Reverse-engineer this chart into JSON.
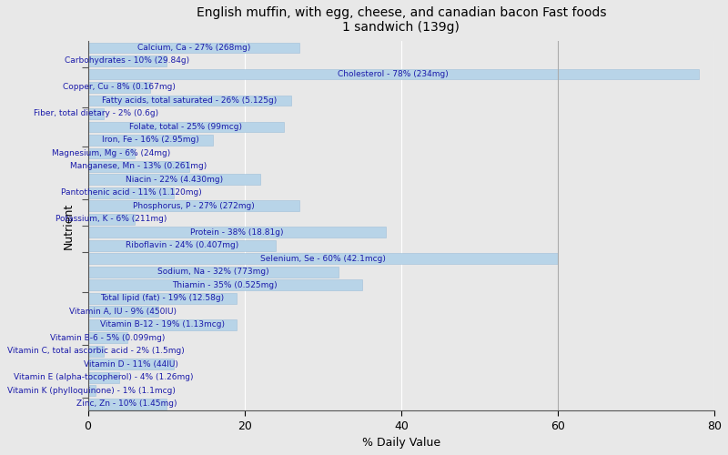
{
  "title": "English muffin, with egg, cheese, and canadian bacon Fast foods\n1 sandwich (139g)",
  "xlabel": "% Daily Value",
  "ylabel": "Nutrient",
  "xlim": [
    0,
    80
  ],
  "background_color": "#e8e8e8",
  "plot_bg_color": "#e8e8e8",
  "bar_color": "#b8d4e8",
  "bar_edge_color": "#a0c0d8",
  "label_color": "#1a1aaa",
  "nutrients": [
    {
      "label": "Calcium, Ca - 27% (268mg)",
      "value": 27
    },
    {
      "label": "Carbohydrates - 10% (29.84g)",
      "value": 10
    },
    {
      "label": "Cholesterol - 78% (234mg)",
      "value": 78
    },
    {
      "label": "Copper, Cu - 8% (0.167mg)",
      "value": 8
    },
    {
      "label": "Fatty acids, total saturated - 26% (5.125g)",
      "value": 26
    },
    {
      "label": "Fiber, total dietary - 2% (0.6g)",
      "value": 2
    },
    {
      "label": "Folate, total - 25% (99mcg)",
      "value": 25
    },
    {
      "label": "Iron, Fe - 16% (2.95mg)",
      "value": 16
    },
    {
      "label": "Magnesium, Mg - 6% (24mg)",
      "value": 6
    },
    {
      "label": "Manganese, Mn - 13% (0.261mg)",
      "value": 13
    },
    {
      "label": "Niacin - 22% (4.430mg)",
      "value": 22
    },
    {
      "label": "Pantothenic acid - 11% (1.120mg)",
      "value": 11
    },
    {
      "label": "Phosphorus, P - 27% (272mg)",
      "value": 27
    },
    {
      "label": "Potassium, K - 6% (211mg)",
      "value": 6
    },
    {
      "label": "Protein - 38% (18.81g)",
      "value": 38
    },
    {
      "label": "Riboflavin - 24% (0.407mg)",
      "value": 24
    },
    {
      "label": "Selenium, Se - 60% (42.1mcg)",
      "value": 60
    },
    {
      "label": "Sodium, Na - 32% (773mg)",
      "value": 32
    },
    {
      "label": "Thiamin - 35% (0.525mg)",
      "value": 35
    },
    {
      "label": "Total lipid (fat) - 19% (12.58g)",
      "value": 19
    },
    {
      "label": "Vitamin A, IU - 9% (450IU)",
      "value": 9
    },
    {
      "label": "Vitamin B-12 - 19% (1.13mcg)",
      "value": 19
    },
    {
      "label": "Vitamin B-6 - 5% (0.099mg)",
      "value": 5
    },
    {
      "label": "Vitamin C, total ascorbic acid - 2% (1.5mg)",
      "value": 2
    },
    {
      "label": "Vitamin D - 11% (44IU)",
      "value": 11
    },
    {
      "label": "Vitamin E (alpha-tocopherol) - 4% (1.26mg)",
      "value": 4
    },
    {
      "label": "Vitamin K (phylloquinone) - 1% (1.1mcg)",
      "value": 1
    },
    {
      "label": "Zinc, Zn - 10% (1.45mg)",
      "value": 10
    }
  ],
  "group_tick_positions_from_top": [
    2,
    5,
    8,
    12,
    14,
    16,
    19,
    23,
    27
  ],
  "title_fontsize": 10,
  "label_fontsize": 6.5,
  "axis_fontsize": 9
}
